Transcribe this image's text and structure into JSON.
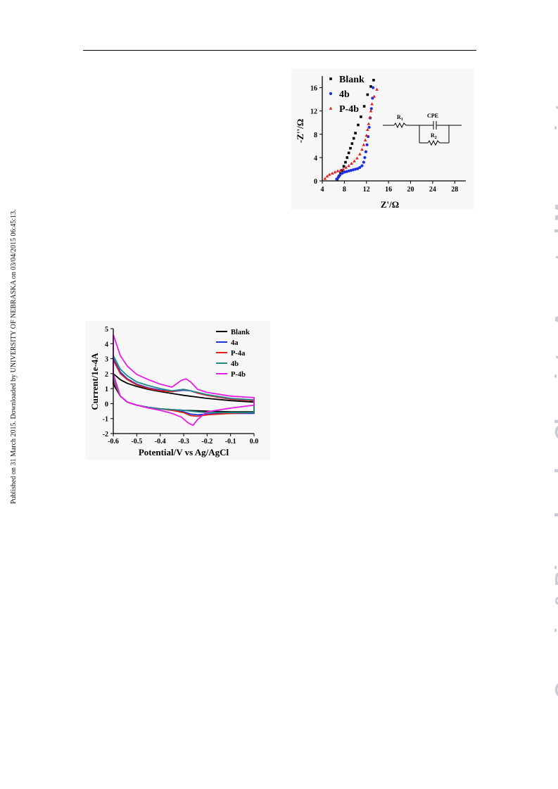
{
  "page": {
    "side_note": "Published on 31 March 2015. Downloaded by UNIVERSITY OF NEBRASKA on 03/04/2015 06:45:13.",
    "watermark": "Organic & Biomolecular Chemistry Accepted Manuscript"
  },
  "chart_data": [
    {
      "type": "scatter",
      "xlabel": "Z'/Ω",
      "ylabel": "-Z''/Ω",
      "xlim": [
        4,
        30
      ],
      "ylim": [
        0,
        18
      ],
      "xticks": [
        "4",
        "8",
        "12",
        "16",
        "20",
        "24",
        "28"
      ],
      "yticks": [
        "0",
        "4",
        "8",
        "12",
        "16"
      ],
      "legend_position": "top-left",
      "grid": false,
      "circuit_labels": {
        "r1": "R",
        "r1_sub": "1",
        "cpe": "CPE",
        "r2": "R",
        "r2_sub": "2"
      },
      "series": [
        {
          "name": "Blank",
          "color": "#000000",
          "marker": "square",
          "x": [
            6.7,
            7.0,
            7.3,
            7.6,
            7.9,
            8.2,
            8.5,
            8.8,
            9.1,
            9.4,
            9.7,
            10.0,
            10.5,
            11.0,
            11.6,
            12.2,
            12.8,
            13.3
          ],
          "y": [
            0.3,
            0.8,
            1.3,
            1.8,
            2.5,
            3.2,
            4.0,
            4.8,
            5.6,
            6.4,
            7.3,
            8.2,
            9.6,
            11.0,
            12.8,
            14.8,
            16.2,
            17.3
          ]
        },
        {
          "name": "4b",
          "color": "#1f2fe0",
          "marker": "circle",
          "x": [
            6.6,
            6.9,
            7.2,
            7.6,
            8.0,
            8.4,
            8.8,
            9.2,
            9.6,
            10.0,
            10.4,
            10.8,
            11.2,
            11.5,
            11.7,
            11.9,
            12.1,
            12.3,
            12.5,
            12.7,
            12.9,
            13.1,
            13.2
          ],
          "y": [
            0.3,
            0.6,
            1.0,
            1.3,
            1.5,
            1.6,
            1.7,
            1.8,
            1.9,
            2.0,
            2.1,
            2.3,
            2.6,
            3.2,
            4.0,
            5.0,
            6.2,
            7.6,
            9.2,
            10.8,
            12.4,
            14.2,
            16.0
          ]
        },
        {
          "name": "P-4b",
          "color": "#e01e1e",
          "marker": "triangle",
          "x": [
            4.5,
            4.9,
            5.3,
            5.8,
            6.3,
            6.8,
            7.3,
            7.8,
            8.3,
            8.8,
            9.3,
            9.8,
            10.3,
            10.8,
            11.2,
            11.5,
            11.8,
            12.0,
            12.2,
            12.4,
            12.6,
            12.8,
            13.0,
            13.4,
            13.9
          ],
          "y": [
            0.4,
            0.8,
            1.1,
            1.3,
            1.5,
            1.7,
            1.8,
            2.0,
            2.3,
            2.6,
            3.0,
            3.4,
            3.9,
            4.6,
            5.4,
            6.2,
            7.0,
            7.8,
            8.8,
            9.8,
            10.9,
            12.0,
            13.2,
            14.5,
            15.7
          ]
        }
      ]
    },
    {
      "type": "line",
      "xlabel": "Potential/V vs Ag/AgCl",
      "ylabel": "Current/1e-4A",
      "xlim": [
        -0.6,
        0.0
      ],
      "ylim": [
        -2,
        5
      ],
      "xticks": [
        "-0.6",
        "-0.5",
        "-0.4",
        "-0.3",
        "-0.2",
        "-0.1",
        "0.0"
      ],
      "yticks": [
        "-2",
        "-1",
        "0",
        "1",
        "2",
        "3",
        "4",
        "5"
      ],
      "legend_position": "top-right",
      "grid": false,
      "series": [
        {
          "name": "Blank",
          "color": "#000000",
          "x": [
            -0.6,
            -0.57,
            -0.54,
            -0.5,
            -0.45,
            -0.4,
            -0.3,
            -0.2,
            -0.1,
            0.0,
            0.0,
            -0.1,
            -0.2,
            -0.3,
            -0.4,
            -0.45,
            -0.5,
            -0.54,
            -0.57,
            -0.6
          ],
          "y": [
            2.0,
            1.6,
            1.35,
            1.15,
            0.95,
            0.8,
            0.55,
            0.35,
            0.2,
            0.1,
            -0.55,
            -0.55,
            -0.5,
            -0.45,
            -0.35,
            -0.25,
            -0.1,
            0.1,
            0.5,
            1.3
          ]
        },
        {
          "name": "4a",
          "color": "#1f2fe0",
          "x": [
            -0.6,
            -0.57,
            -0.54,
            -0.5,
            -0.45,
            -0.4,
            -0.35,
            -0.3,
            -0.27,
            -0.24,
            -0.2,
            -0.1,
            0.0,
            0.0,
            -0.1,
            -0.2,
            -0.24,
            -0.27,
            -0.3,
            -0.35,
            -0.4,
            -0.45,
            -0.5,
            -0.54,
            -0.57,
            -0.6
          ],
          "y": [
            3.0,
            2.1,
            1.65,
            1.3,
            1.05,
            0.9,
            0.8,
            0.9,
            0.85,
            0.7,
            0.55,
            0.3,
            0.2,
            -0.65,
            -0.65,
            -0.7,
            -0.75,
            -0.7,
            -0.55,
            -0.45,
            -0.35,
            -0.25,
            -0.1,
            0.1,
            0.5,
            1.6
          ]
        },
        {
          "name": "P-4a",
          "color": "#e01e1e",
          "x": [
            -0.6,
            -0.57,
            -0.54,
            -0.5,
            -0.45,
            -0.4,
            -0.35,
            -0.3,
            -0.27,
            -0.24,
            -0.2,
            -0.1,
            0.0,
            0.0,
            -0.1,
            -0.2,
            -0.24,
            -0.27,
            -0.3,
            -0.35,
            -0.4,
            -0.45,
            -0.5,
            -0.54,
            -0.57,
            -0.6
          ],
          "y": [
            2.9,
            2.0,
            1.6,
            1.25,
            1.0,
            0.85,
            0.8,
            0.95,
            0.85,
            0.7,
            0.55,
            0.3,
            0.2,
            -0.6,
            -0.65,
            -0.75,
            -0.85,
            -0.8,
            -0.6,
            -0.45,
            -0.35,
            -0.25,
            -0.1,
            0.1,
            0.5,
            1.5
          ]
        },
        {
          "name": "4b",
          "color": "#1f8a8a",
          "x": [
            -0.6,
            -0.57,
            -0.54,
            -0.5,
            -0.45,
            -0.4,
            -0.35,
            -0.3,
            -0.27,
            -0.24,
            -0.2,
            -0.1,
            0.0,
            0.0,
            -0.1,
            -0.2,
            -0.24,
            -0.27,
            -0.3,
            -0.35,
            -0.4,
            -0.45,
            -0.5,
            -0.54,
            -0.57,
            -0.6
          ],
          "y": [
            3.2,
            2.3,
            1.85,
            1.45,
            1.2,
            1.0,
            0.85,
            0.95,
            0.85,
            0.75,
            0.6,
            0.35,
            0.25,
            -0.6,
            -0.6,
            -0.6,
            -0.55,
            -0.5,
            -0.45,
            -0.4,
            -0.35,
            -0.25,
            -0.1,
            0.1,
            0.5,
            1.7
          ]
        },
        {
          "name": "P-4b",
          "color": "#e61ee6",
          "x": [
            -0.6,
            -0.57,
            -0.54,
            -0.5,
            -0.45,
            -0.4,
            -0.35,
            -0.31,
            -0.29,
            -0.27,
            -0.24,
            -0.2,
            -0.1,
            0.0,
            0.0,
            -0.1,
            -0.2,
            -0.24,
            -0.26,
            -0.28,
            -0.31,
            -0.35,
            -0.4,
            -0.45,
            -0.5,
            -0.54,
            -0.57,
            -0.6
          ],
          "y": [
            4.6,
            3.2,
            2.5,
            1.95,
            1.6,
            1.3,
            1.1,
            1.55,
            1.65,
            1.45,
            0.95,
            0.75,
            0.5,
            0.4,
            -0.1,
            -0.3,
            -0.55,
            -1.05,
            -1.45,
            -1.3,
            -0.9,
            -0.65,
            -0.45,
            -0.3,
            -0.1,
            0.1,
            0.5,
            2.0
          ]
        }
      ]
    }
  ]
}
